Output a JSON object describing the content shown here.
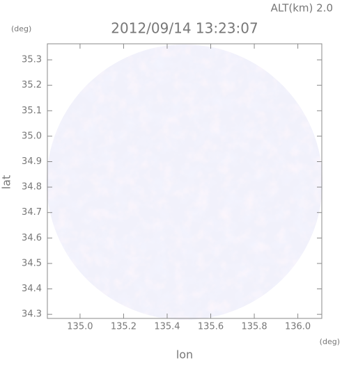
{
  "chart_data": {
    "type": "radar-field",
    "title": "2012/09/14 13:23:07",
    "annotation": "ALT(km) 2.0",
    "x_label": "lon",
    "y_label": "lat",
    "x_unit": "(deg)",
    "y_unit": "(deg)",
    "xlim": [
      134.85,
      136.11
    ],
    "ylim": [
      34.284,
      35.363
    ],
    "xticks": [
      {
        "value": 135,
        "label": "135.0"
      },
      135.2,
      135.4,
      135.6,
      135.8,
      {
        "value": 136,
        "label": "136.0"
      }
    ],
    "yticks": [
      34.3,
      34.4,
      34.5,
      34.6,
      34.7,
      34.8,
      34.9,
      {
        "value": 35,
        "label": "35.0"
      },
      35.1,
      35.2,
      35.3
    ]
  }
}
